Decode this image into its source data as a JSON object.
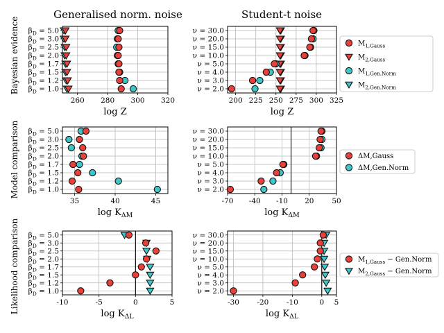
{
  "colors": {
    "gauss": "#e8403a",
    "gennorm": "#3ec6c8",
    "edge": "#111111",
    "grid": "#b8b8b8",
    "line": "#000000"
  },
  "column_titles": [
    "Generalised norm. noise",
    "Student-t noise"
  ],
  "row_labels": [
    "Bayesian evidence",
    "Model comparison",
    "Likelihood comparison"
  ],
  "legends": [
    {
      "entries": [
        {
          "text": "M_1,Gauss",
          "color": "gauss",
          "marker": "circle"
        },
        {
          "text": "M_2,Gauss",
          "color": "gauss",
          "marker": "triangle"
        },
        {
          "text": "M_1,Gen.Norm",
          "color": "gennorm",
          "marker": "circle"
        },
        {
          "text": "M_2,Gen.Norm",
          "color": "gennorm",
          "marker": "triangle"
        }
      ]
    },
    {
      "entries": [
        {
          "text": "ΔM,Gauss",
          "color": "gauss",
          "marker": "circle"
        },
        {
          "text": "ΔM,Gen.Norm",
          "color": "gennorm",
          "marker": "circle"
        }
      ]
    },
    {
      "entries": [
        {
          "text": "M_1,Gauss − Gen.Norm",
          "color": "gauss",
          "marker": "circle"
        },
        {
          "text": "M_2,Gauss − Gen.Norm",
          "color": "gennorm",
          "marker": "triangle"
        }
      ]
    }
  ],
  "chart_data": [
    {
      "id": "evidence-gennorm",
      "type": "scatter",
      "xlabel": "log Z",
      "categories": [
        "β_D = 1.0",
        "β_D = 1.2",
        "β_D = 1.5",
        "β_D = 1.7",
        "β_D = 2.0",
        "β_D = 2.5",
        "β_D = 3.0",
        "β_D = 5.0"
      ],
      "xlim": [
        250,
        320
      ],
      "xticks": [
        "260",
        "280",
        "300",
        "320"
      ],
      "xtick_values": [
        260,
        280,
        300,
        320
      ],
      "vline": null,
      "series": [
        {
          "name": "M_2,Gen.Norm",
          "color": "gennorm",
          "marker": "triangle",
          "values": [
            253,
            252.5,
            252,
            252,
            251.5,
            251.5,
            251,
            251
          ]
        },
        {
          "name": "M_2,Gauss",
          "color": "gauss",
          "marker": "triangle",
          "values": [
            254,
            253.5,
            253,
            253,
            252.5,
            252.5,
            252,
            252
          ]
        },
        {
          "name": "M_1,Gen.Norm",
          "color": "gennorm",
          "marker": "circle",
          "values": [
            297,
            291.5,
            288,
            287,
            286.5,
            286,
            286.5,
            287
          ]
        },
        {
          "name": "M_1,Gauss",
          "color": "gauss",
          "marker": "circle",
          "values": [
            289,
            288,
            287.5,
            287.5,
            287,
            287.5,
            287,
            288
          ]
        }
      ]
    },
    {
      "id": "evidence-studentt",
      "type": "scatter",
      "xlabel": "log Z",
      "categories": [
        "ν = 2.0",
        "ν = 3.0",
        "ν = 4.0",
        "ν = 5.0",
        "ν = 10.0",
        "ν = 15.0",
        "ν = 20.0",
        "ν = 30.0"
      ],
      "xlim": [
        190,
        325
      ],
      "xticks": [
        "200",
        "225",
        "250",
        "275",
        "300",
        "325"
      ],
      "xtick_values": [
        200,
        225,
        250,
        275,
        300,
        325
      ],
      "vline": null,
      "series": [
        {
          "name": "M_2,Gen.Norm",
          "color": "gennorm",
          "marker": "triangle",
          "values": [
            256,
            256,
            256,
            256,
            256,
            256,
            256,
            256
          ]
        },
        {
          "name": "M_2,Gauss",
          "color": "gauss",
          "marker": "triangle",
          "values": [
            255,
            255,
            255,
            255,
            255,
            255,
            255,
            255
          ]
        },
        {
          "name": "M_1,Gen.Norm",
          "color": "gennorm",
          "marker": "circle",
          "values": [
            224,
            230,
            243,
            250,
            286,
            293,
            296,
            297
          ]
        },
        {
          "name": "M_1,Gauss",
          "color": "gauss",
          "marker": "circle",
          "values": [
            195,
            221,
            238,
            248,
            285,
            292,
            294,
            296
          ]
        }
      ]
    },
    {
      "id": "model-gennorm",
      "type": "scatter",
      "xlabel": "log K_ΔM",
      "categories": [
        "β_D = 1.0",
        "β_D = 1.2",
        "β_D = 1.5",
        "β_D = 1.7",
        "β_D = 2.0",
        "β_D = 2.5",
        "β_D = 3.0",
        "β_D = 5.0"
      ],
      "xlim": [
        33.5,
        46.5
      ],
      "xticks": [
        "35",
        "40",
        "45"
      ],
      "xtick_values": [
        35,
        40,
        45
      ],
      "vline": null,
      "series": [
        {
          "name": "ΔM,Gen.Norm",
          "color": "gennorm",
          "marker": "circle",
          "values": [
            45.2,
            40.4,
            37.2,
            35.6,
            35.9,
            34.6,
            34.3,
            35.8
          ]
        },
        {
          "name": "ΔM,Gauss",
          "color": "gauss",
          "marker": "circle",
          "values": [
            35.5,
            34.7,
            35.4,
            34.8,
            36.1,
            36,
            35.6,
            36.4
          ]
        }
      ]
    },
    {
      "id": "model-studentt",
      "type": "scatter",
      "xlabel": "log K_ΔM",
      "categories": [
        "ν = 2.0",
        "ν = 3.0",
        "ν = 4.0",
        "ν = 5.0",
        "ν = 10.0",
        "ν = 15.0",
        "ν = 20.0",
        "ν = 30.0"
      ],
      "xlim": [
        -70,
        50
      ],
      "xticks": [
        "-70",
        "-40",
        "-10",
        "20",
        "50"
      ],
      "xtick_values": [
        -70,
        -40,
        -10,
        20,
        50
      ],
      "vline": 0,
      "series": [
        {
          "name": "ΔM,Gen.Norm",
          "color": "gennorm",
          "marker": "circle",
          "values": [
            -30,
            -20,
            -12,
            -8,
            28,
            33,
            34,
            34
          ]
        },
        {
          "name": "ΔM,Gauss",
          "color": "gauss",
          "marker": "circle",
          "values": [
            -67,
            -33,
            -16,
            -9,
            27,
            31,
            32,
            33
          ]
        }
      ]
    },
    {
      "id": "likelihood-gennorm",
      "type": "scatter",
      "xlabel": "log K_ΔL",
      "categories": [
        "β_D = 1.0",
        "β_D = 1.2",
        "β_D = 1.5",
        "β_D = 1.7",
        "β_D = 2.0",
        "β_D = 2.5",
        "β_D = 3.0",
        "β_D = 5.0"
      ],
      "xlim": [
        -10,
        5
      ],
      "xticks": [
        "-10",
        "-5",
        "0",
        "5"
      ],
      "xtick_values": [
        -10,
        -5,
        0,
        5
      ],
      "vline": 0,
      "series": [
        {
          "name": "M_2,Gauss − Gen.Norm",
          "color": "gennorm",
          "marker": "triangle",
          "values": [
            2,
            2,
            2,
            2,
            1.6,
            1.5,
            1.5,
            -1.5
          ]
        },
        {
          "name": "M_1,Gauss − Gen.Norm",
          "color": "gauss",
          "marker": "circle",
          "values": [
            -7.5,
            -3.5,
            0,
            0.8,
            1.5,
            2.8,
            1.4,
            -0.9
          ]
        }
      ]
    },
    {
      "id": "likelihood-studentt",
      "type": "scatter",
      "xlabel": "log K_ΔL",
      "categories": [
        "ν = 2.0",
        "ν = 3.0",
        "ν = 4.0",
        "ν = 5.0",
        "ν = 10.0",
        "ν = 15.0",
        "ν = 20.0",
        "ν = 30.0"
      ],
      "xlim": [
        -32,
        5
      ],
      "xticks": [
        "-30",
        "-20",
        "-10",
        "0",
        "5"
      ],
      "xtick_values": [
        -30,
        -20,
        -10,
        0,
        5
      ],
      "vline": 0,
      "series": [
        {
          "name": "M_2,Gauss − Gen.Norm",
          "color": "gennorm",
          "marker": "triangle",
          "values": [
            2,
            1.5,
            1.2,
            1,
            0.8,
            0.8,
            0.8,
            1.5
          ]
        },
        {
          "name": "M_1,Gauss − Gen.Norm",
          "color": "gauss",
          "marker": "circle",
          "values": [
            -30,
            -9,
            -6.5,
            -2.5,
            -1.5,
            -0.5,
            -0.5,
            0.5
          ]
        }
      ]
    }
  ]
}
